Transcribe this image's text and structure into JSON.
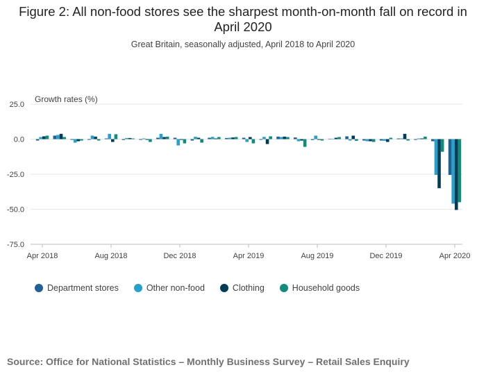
{
  "title": "Figure 2: All non-food stores see the sharpest month-on-month fall on record in April 2020",
  "subtitle": "Great Britain, seasonally adjusted, April 2018 to April 2020",
  "source": "Source: Office for National Statistics – Monthly Business Survey – Retail Sales Enquiry",
  "chart_data": {
    "type": "bar",
    "ylabel": "Growth rates (%)",
    "ylim": [
      -75,
      25
    ],
    "yticks": [
      25,
      0,
      -25,
      -50,
      -75
    ],
    "ytick_labels": [
      "25.0",
      "0.0",
      "-25.0",
      "-50.0",
      "-75.0"
    ],
    "grid": true,
    "legend_position": "bottom-left",
    "categories": [
      "Apr 2018",
      "May 2018",
      "Jun 2018",
      "Jul 2018",
      "Aug 2018",
      "Sep 2018",
      "Oct 2018",
      "Nov 2018",
      "Dec 2018",
      "Jan 2019",
      "Feb 2019",
      "Mar 2019",
      "Apr 2019",
      "May 2019",
      "Jun 2019",
      "Jul 2019",
      "Aug 2019",
      "Sep 2019",
      "Oct 2019",
      "Nov 2019",
      "Dec 2019",
      "Jan 2020",
      "Feb 2020",
      "Mar 2020",
      "Apr 2020"
    ],
    "x_tick_labels": [
      {
        "index": 0,
        "label": "Apr 2018"
      },
      {
        "index": 4,
        "label": "Aug 2018"
      },
      {
        "index": 8,
        "label": "Dec 2018"
      },
      {
        "index": 12,
        "label": "Apr 2019"
      },
      {
        "index": 16,
        "label": "Aug 2019"
      },
      {
        "index": 20,
        "label": "Dec 2019"
      },
      {
        "index": 24,
        "label": "Apr 2020"
      }
    ],
    "series": [
      {
        "name": "Department stores",
        "color": "#206095",
        "values": [
          -1.0,
          2.5,
          -0.5,
          -0.5,
          0.5,
          -0.6,
          -0.5,
          1.0,
          1.0,
          -1.0,
          1.0,
          0.8,
          1.0,
          -0.5,
          1.8,
          1.2,
          -0.6,
          0.3,
          2.0,
          -1.0,
          -1.0,
          0.5,
          -0.5,
          -1.5,
          -25.5
        ]
      },
      {
        "name": "Other non-food",
        "color": "#27a0cc",
        "values": [
          1.5,
          3.0,
          -2.5,
          2.5,
          3.8,
          0.8,
          0.5,
          3.8,
          -4.5,
          1.7,
          1.6,
          1.0,
          -2.0,
          1.6,
          1.5,
          -1.5,
          2.5,
          0.3,
          -1.0,
          -1.5,
          -1.2,
          0.5,
          0.5,
          -25.5,
          -46.0
        ]
      },
      {
        "name": "Clothing",
        "color": "#003c57",
        "values": [
          2.0,
          3.8,
          -1.5,
          1.8,
          -2.0,
          0.8,
          -0.5,
          1.5,
          -0.5,
          1.0,
          0.5,
          1.2,
          1.5,
          -3.5,
          1.8,
          -1.0,
          -0.5,
          1.0,
          2.5,
          -1.5,
          -2.0,
          3.8,
          0.5,
          -35.0,
          -50.5
        ]
      },
      {
        "name": "Household goods",
        "color": "#118c7b",
        "values": [
          2.5,
          1.5,
          -1.0,
          -1.0,
          3.5,
          0.5,
          -2.0,
          1.8,
          -3.0,
          -2.5,
          1.5,
          1.5,
          -3.0,
          2.0,
          1.5,
          -5.5,
          -1.0,
          1.5,
          -1.2,
          -2.0,
          1.0,
          -1.0,
          1.8,
          -9.0,
          -45.0
        ]
      }
    ]
  }
}
